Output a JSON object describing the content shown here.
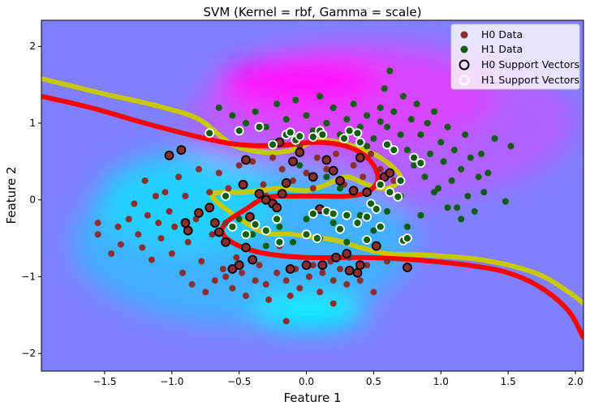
{
  "chart_data": {
    "type": "scatter",
    "title": "SVM (Kernel = rbf, Gamma = scale)",
    "xlabel": "Feature 1",
    "ylabel": "Feature 2",
    "xlim": [
      -1.97,
      2.06
    ],
    "ylim": [
      -2.23,
      2.34
    ],
    "x_ticks": [
      -1.5,
      -1.0,
      -0.5,
      0.0,
      0.5,
      1.0,
      1.5,
      2.0
    ],
    "x_tick_labels": [
      "−1.5",
      "−1.0",
      "−0.5",
      "0.0",
      "0.5",
      "1.0",
      "1.5",
      "2.0"
    ],
    "y_ticks": [
      -2,
      -1,
      0,
      1,
      2
    ],
    "y_tick_labels": [
      "−2",
      "−1",
      "0",
      "1",
      "2"
    ],
    "grid": false,
    "legend_position": "top-right",
    "background": "decision function filled contours (cool colormap: cyan to magenta)",
    "colors": {
      "h0": "#8b2e2e",
      "h1": "#0b5e0b",
      "decision_boundary": "#ff0000",
      "margin_contour": "#c8c800",
      "contour_base": "#8080ff",
      "contour_h0_side": "#00e8ff",
      "contour_h1_side": "#ff00ff"
    },
    "legend": [
      {
        "label": "H0 Data",
        "marker": "filled-circle",
        "color": "#8b2e2e"
      },
      {
        "label": "H1 Data",
        "marker": "filled-circle",
        "color": "#0b5e0b"
      },
      {
        "label": "H0 Support Vectors",
        "marker": "hollow-circle",
        "color": "#000000"
      },
      {
        "label": "H1 Support Vectors",
        "marker": "hollow-circle",
        "color": "#ffffff"
      }
    ],
    "decision_boundary": [
      [
        -1.97,
        1.35
      ],
      [
        -1.6,
        1.2
      ],
      [
        -1.2,
        1.0
      ],
      [
        -0.8,
        0.82
      ],
      [
        -0.5,
        0.72
      ],
      [
        -0.2,
        0.71
      ],
      [
        0.05,
        0.75
      ],
      [
        0.25,
        0.72
      ],
      [
        0.4,
        0.62
      ],
      [
        0.5,
        0.45
      ],
      [
        0.53,
        0.25
      ],
      [
        0.45,
        0.1
      ],
      [
        0.3,
        0.05
      ],
      [
        0.1,
        0.05
      ],
      [
        -0.1,
        0.05
      ],
      [
        -0.3,
        0.03
      ],
      [
        -0.45,
        -0.12
      ],
      [
        -0.6,
        -0.3
      ],
      [
        -0.62,
        -0.45
      ],
      [
        -0.5,
        -0.6
      ],
      [
        -0.3,
        -0.7
      ],
      [
        0.0,
        -0.75
      ],
      [
        0.4,
        -0.75
      ],
      [
        0.8,
        -0.78
      ],
      [
        1.2,
        -0.85
      ],
      [
        1.5,
        -0.95
      ],
      [
        1.75,
        -1.15
      ],
      [
        1.95,
        -1.45
      ],
      [
        2.06,
        -1.8
      ]
    ],
    "h1_margin": [
      [
        -1.97,
        1.58
      ],
      [
        -1.5,
        1.38
      ],
      [
        -1.1,
        1.22
      ],
      [
        -0.8,
        1.05
      ],
      [
        -0.55,
        0.72
      ],
      [
        -0.3,
        0.62
      ],
      [
        -0.1,
        0.65
      ],
      [
        0.1,
        0.78
      ],
      [
        0.35,
        0.7
      ],
      [
        0.55,
        0.55
      ],
      [
        0.7,
        0.3
      ],
      [
        0.6,
        0.15
      ],
      [
        0.45,
        0.2
      ],
      [
        0.3,
        0.3
      ],
      [
        0.15,
        0.2
      ],
      [
        0.0,
        0.12
      ],
      [
        -0.2,
        0.15
      ],
      [
        -0.45,
        0.1
      ],
      [
        -0.7,
        0.05
      ],
      [
        -0.35,
        -0.4
      ],
      [
        -0.1,
        -0.45
      ],
      [
        0.2,
        -0.52
      ],
      [
        0.4,
        -0.62
      ],
      [
        0.6,
        -0.7
      ],
      [
        0.9,
        -0.72
      ],
      [
        1.3,
        -0.78
      ],
      [
        1.7,
        -0.95
      ],
      [
        1.95,
        -1.2
      ],
      [
        2.06,
        -1.35
      ]
    ],
    "h0_data": [
      [
        -1.55,
        -0.3
      ],
      [
        -1.55,
        -0.45
      ],
      [
        -1.45,
        -0.7
      ],
      [
        -1.4,
        -0.35
      ],
      [
        -1.38,
        -0.58
      ],
      [
        -1.32,
        -0.25
      ],
      [
        -1.28,
        -0.05
      ],
      [
        -1.25,
        -0.45
      ],
      [
        -1.22,
        -0.62
      ],
      [
        -1.2,
        0.25
      ],
      [
        -1.18,
        -0.2
      ],
      [
        -1.15,
        -0.78
      ],
      [
        -1.12,
        0.05
      ],
      [
        -1.1,
        -0.3
      ],
      [
        -1.08,
        -0.5
      ],
      [
        -1.05,
        0.1
      ],
      [
        -1.02,
        -0.15
      ],
      [
        -1.0,
        -0.7
      ],
      [
        -0.98,
        -0.35
      ],
      [
        -0.95,
        0.3
      ],
      [
        -0.92,
        -0.95
      ],
      [
        -0.9,
        0.05
      ],
      [
        -0.88,
        -0.55
      ],
      [
        -0.85,
        -1.1
      ],
      [
        -0.82,
        -0.25
      ],
      [
        -0.8,
        0.4
      ],
      [
        -0.78,
        -0.8
      ],
      [
        -0.75,
        -1.2
      ],
      [
        -0.72,
        0.1
      ],
      [
        -0.7,
        -0.45
      ],
      [
        -0.68,
        -1.05
      ],
      [
        -0.65,
        0.35
      ],
      [
        -0.62,
        -0.9
      ],
      [
        -0.6,
        -1.0
      ],
      [
        -0.58,
        0.15
      ],
      [
        -0.55,
        -1.15
      ],
      [
        -0.52,
        -0.75
      ],
      [
        -0.5,
        0.45
      ],
      [
        -0.48,
        -0.95
      ],
      [
        -0.45,
        -1.25
      ],
      [
        -0.42,
        -0.2
      ],
      [
        -0.4,
        0.5
      ],
      [
        -0.38,
        -1.05
      ],
      [
        -0.35,
        -0.85
      ],
      [
        -0.32,
        0.2
      ],
      [
        -0.3,
        -1.1
      ],
      [
        -0.28,
        -1.3
      ],
      [
        -0.25,
        0.55
      ],
      [
        -0.22,
        -0.95
      ],
      [
        -0.2,
        -0.6
      ],
      [
        -0.18,
        0.4
      ],
      [
        -0.15,
        -1.05
      ],
      [
        -0.12,
        -1.25
      ],
      [
        -0.1,
        0.25
      ],
      [
        -0.08,
        -0.9
      ],
      [
        -0.05,
        -1.15
      ],
      [
        0.0,
        0.35
      ],
      [
        0.02,
        -1.0
      ],
      [
        0.05,
        -0.85
      ],
      [
        0.08,
        0.55
      ],
      [
        0.1,
        -1.2
      ],
      [
        0.12,
        -0.95
      ],
      [
        0.15,
        0.4
      ],
      [
        0.18,
        -0.8
      ],
      [
        0.2,
        -1.05
      ],
      [
        0.22,
        0.6
      ],
      [
        0.25,
        -0.9
      ],
      [
        0.28,
        0.2
      ],
      [
        0.3,
        -1.1
      ],
      [
        0.32,
        -0.75
      ],
      [
        0.35,
        0.45
      ],
      [
        0.38,
        -0.95
      ],
      [
        0.4,
        -1.05
      ],
      [
        0.42,
        0.3
      ],
      [
        0.45,
        -0.85
      ],
      [
        0.48,
        0.6
      ],
      [
        0.5,
        -1.2
      ],
      [
        0.55,
        0.4
      ],
      [
        0.6,
        -0.8
      ],
      [
        0.65,
        0.25
      ],
      [
        -0.15,
        -1.58
      ],
      [
        0.2,
        -1.35
      ],
      [
        -0.6,
        -0.3
      ],
      [
        -0.3,
        0.05
      ],
      [
        0.05,
        0.15
      ],
      [
        -0.05,
        0.7
      ]
    ],
    "h1_data": [
      [
        -0.65,
        1.2
      ],
      [
        -0.55,
        1.1
      ],
      [
        -0.45,
        1.0
      ],
      [
        -0.38,
        1.15
      ],
      [
        -0.3,
        0.95
      ],
      [
        -0.22,
        1.25
      ],
      [
        -0.15,
        1.05
      ],
      [
        -0.08,
        1.3
      ],
      [
        0.0,
        1.1
      ],
      [
        0.05,
        0.9
      ],
      [
        0.1,
        1.35
      ],
      [
        0.15,
        1.0
      ],
      [
        0.2,
        1.2
      ],
      [
        0.25,
        0.85
      ],
      [
        0.3,
        1.05
      ],
      [
        0.35,
        1.25
      ],
      [
        0.4,
        0.95
      ],
      [
        0.45,
        1.1
      ],
      [
        0.5,
        0.8
      ],
      [
        0.55,
        1.2
      ],
      [
        0.58,
        1.45
      ],
      [
        0.6,
        0.95
      ],
      [
        0.62,
        1.68
      ],
      [
        0.65,
        1.15
      ],
      [
        0.7,
        0.85
      ],
      [
        0.72,
        1.35
      ],
      [
        0.75,
        0.65
      ],
      [
        0.78,
        1.05
      ],
      [
        0.8,
        0.45
      ],
      [
        0.82,
        1.25
      ],
      [
        0.85,
        0.85
      ],
      [
        0.88,
        0.3
      ],
      [
        0.9,
        1.0
      ],
      [
        0.92,
        0.6
      ],
      [
        0.95,
        1.15
      ],
      [
        0.98,
        0.15
      ],
      [
        1.0,
        0.75
      ],
      [
        1.02,
        0.5
      ],
      [
        1.05,
        0.95
      ],
      [
        1.08,
        0.25
      ],
      [
        1.1,
        0.65
      ],
      [
        1.12,
        -0.1
      ],
      [
        1.15,
        0.4
      ],
      [
        1.18,
        0.85
      ],
      [
        1.2,
        0.05
      ],
      [
        1.22,
        0.55
      ],
      [
        1.25,
        -0.15
      ],
      [
        1.28,
        0.3
      ],
      [
        1.3,
        0.6
      ],
      [
        1.32,
        0.1
      ],
      [
        1.35,
        0.35
      ],
      [
        1.4,
        0.8
      ],
      [
        1.48,
        -0.02
      ],
      [
        1.52,
        0.7
      ],
      [
        1.15,
        -0.25
      ],
      [
        1.05,
        -0.1
      ],
      [
        0.95,
        0.1
      ],
      [
        0.85,
        -0.2
      ],
      [
        0.75,
        -0.35
      ],
      [
        0.7,
        0.05
      ],
      [
        0.6,
        -0.15
      ],
      [
        0.5,
        -0.4
      ],
      [
        0.4,
        -0.2
      ],
      [
        0.3,
        -0.55
      ],
      [
        0.2,
        -0.3
      ],
      [
        0.1,
        -0.5
      ],
      [
        0.0,
        -0.25
      ],
      [
        -0.1,
        -0.55
      ],
      [
        -0.2,
        -0.35
      ],
      [
        -0.3,
        -0.6
      ],
      [
        -0.4,
        -0.45
      ],
      [
        -0.5,
        -0.25
      ],
      [
        0.15,
        0.3
      ],
      [
        0.25,
        0.15
      ],
      [
        -0.05,
        0.45
      ],
      [
        0.45,
        0.7
      ],
      [
        -0.25,
        0.75
      ],
      [
        0.55,
        1.02
      ]
    ],
    "h0_support_vectors": [
      [
        -1.02,
        0.58
      ],
      [
        -0.93,
        0.65
      ],
      [
        -0.9,
        -0.3
      ],
      [
        -0.88,
        -0.4
      ],
      [
        -0.8,
        -0.17
      ],
      [
        -0.72,
        -0.1
      ],
      [
        -0.68,
        -0.3
      ],
      [
        -0.65,
        -0.42
      ],
      [
        -0.6,
        -0.55
      ],
      [
        -0.55,
        -0.9
      ],
      [
        -0.5,
        -0.85
      ],
      [
        -0.47,
        0.2
      ],
      [
        -0.45,
        0.52
      ],
      [
        -0.45,
        -0.62
      ],
      [
        -0.42,
        -0.22
      ],
      [
        -0.4,
        -0.78
      ],
      [
        -0.35,
        0.08
      ],
      [
        -0.3,
        0.0
      ],
      [
        -0.25,
        -0.05
      ],
      [
        -0.2,
        0.75
      ],
      [
        -0.18,
        0.08
      ],
      [
        -0.15,
        0.22
      ],
      [
        -0.12,
        -0.9
      ],
      [
        -0.1,
        0.5
      ],
      [
        -0.05,
        0.62
      ],
      [
        0.0,
        -0.85
      ],
      [
        0.05,
        0.3
      ],
      [
        0.1,
        -0.12
      ],
      [
        0.12,
        -0.85
      ],
      [
        0.15,
        0.52
      ],
      [
        0.2,
        0.38
      ],
      [
        0.22,
        -0.75
      ],
      [
        0.25,
        0.25
      ],
      [
        0.3,
        -0.7
      ],
      [
        0.32,
        -0.92
      ],
      [
        0.35,
        0.12
      ],
      [
        0.38,
        -0.95
      ],
      [
        0.4,
        -0.85
      ],
      [
        0.4,
        0.55
      ],
      [
        0.45,
        0.1
      ],
      [
        0.52,
        -0.6
      ],
      [
        0.58,
        0.3
      ],
      [
        0.62,
        0.35
      ],
      [
        0.75,
        -0.88
      ],
      [
        -0.22,
        -0.1
      ]
    ],
    "h1_support_vectors": [
      [
        -0.72,
        0.87
      ],
      [
        -0.5,
        0.9
      ],
      [
        -0.35,
        0.95
      ],
      [
        -0.25,
        0.72
      ],
      [
        -0.2,
        -0.55
      ],
      [
        -0.15,
        0.85
      ],
      [
        -0.12,
        0.88
      ],
      [
        -0.08,
        0.78
      ],
      [
        -0.05,
        0.83
      ],
      [
        0.05,
        0.82
      ],
      [
        0.1,
        0.9
      ],
      [
        0.12,
        0.85
      ],
      [
        0.15,
        -0.15
      ],
      [
        0.2,
        -0.18
      ],
      [
        0.28,
        0.8
      ],
      [
        0.32,
        0.9
      ],
      [
        0.38,
        0.87
      ],
      [
        0.4,
        0.75
      ],
      [
        0.45,
        -0.52
      ],
      [
        0.48,
        -0.05
      ],
      [
        0.52,
        -0.12
      ],
      [
        0.55,
        -0.35
      ],
      [
        0.6,
        0.72
      ],
      [
        0.62,
        0.1
      ],
      [
        0.65,
        0.65
      ],
      [
        0.68,
        0.04
      ],
      [
        0.7,
        0.25
      ],
      [
        0.72,
        -0.53
      ],
      [
        0.75,
        -0.5
      ],
      [
        0.8,
        0.55
      ],
      [
        0.85,
        0.48
      ],
      [
        0.55,
        0.2
      ],
      [
        -0.6,
        0.05
      ],
      [
        -0.55,
        -0.35
      ],
      [
        -0.45,
        -0.45
      ],
      [
        -0.38,
        -0.32
      ],
      [
        -0.3,
        -0.4
      ],
      [
        -0.22,
        -0.25
      ],
      [
        0.0,
        -0.45
      ],
      [
        0.05,
        -0.18
      ],
      [
        0.08,
        -0.5
      ],
      [
        0.25,
        -0.38
      ],
      [
        0.3,
        -0.2
      ],
      [
        0.38,
        -0.3
      ],
      [
        0.45,
        -0.22
      ]
    ]
  }
}
